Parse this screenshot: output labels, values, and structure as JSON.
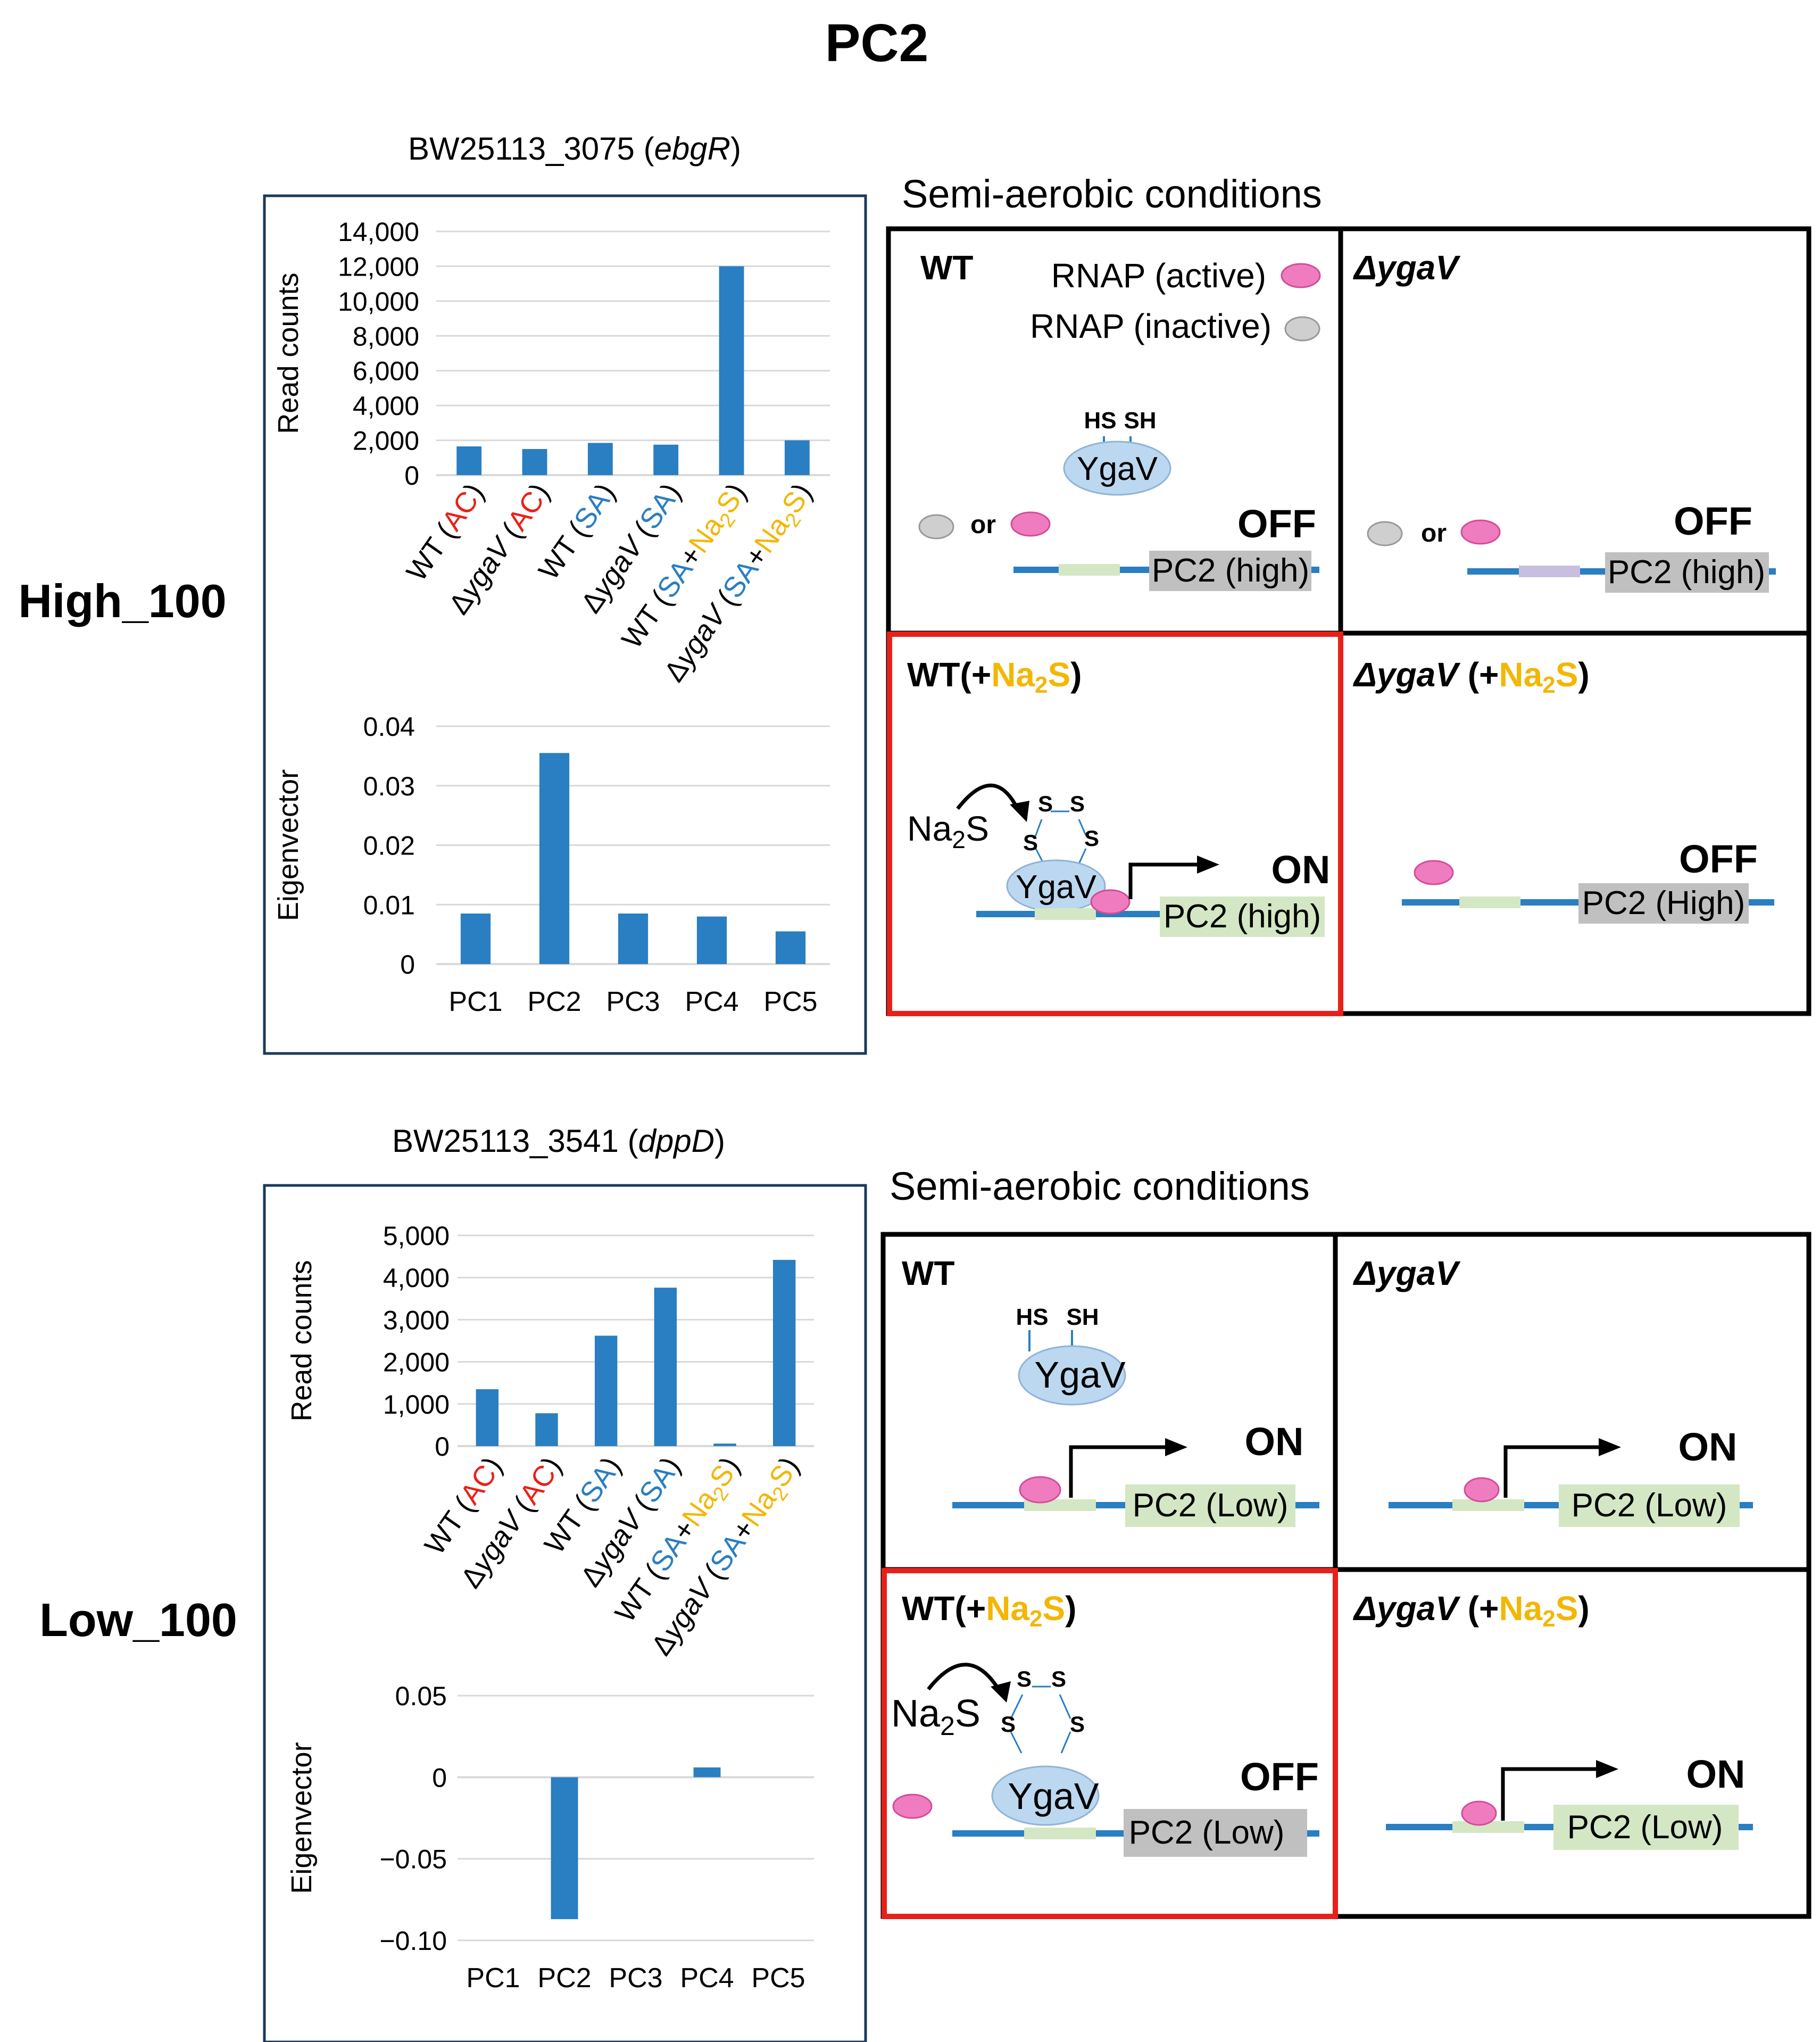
{
  "figure_title": "PC2",
  "colors": {
    "bar": "#2a7ec2",
    "red_label": "#e8201a",
    "blue_label": "#2a7ec2",
    "gold_label": "#f2b705",
    "panel_border": "#1b3a5a",
    "highlight_border": "#e8201a",
    "dna": "#2a7ec2",
    "ygav_fill": "#bcd8f0",
    "rnap_active": "#f07cc0",
    "rnap_inactive": "#c8c8c8",
    "gene_on": "#d4e7c4",
    "gene_off": "#c0c0c0",
    "promoter_alt": "#c8bfe0"
  },
  "rows": [
    {
      "row_label": "High_100",
      "gene_title": {
        "prefix": "BW25113_3075 (",
        "gene": "ebgR",
        "suffix": ")"
      },
      "chart_data": [
        {
          "type": "bar",
          "ylabel": "Read counts",
          "ylim": [
            0,
            14000
          ],
          "yticks": [
            "0",
            "2,000",
            "4,000",
            "6,000",
            "8,000",
            "10,000",
            "12,000",
            "14,000"
          ],
          "categories": [
            "WT (AC)",
            "ΔygaV (AC)",
            "WT (SA)",
            "ΔygaV (SA)",
            "WT (SA+Na2S)",
            "ΔygaV (SA+Na2S)"
          ],
          "values": [
            1650,
            1500,
            1850,
            1750,
            12000,
            2000
          ]
        },
        {
          "type": "bar",
          "ylabel": "Eigenvector",
          "ylim": [
            0,
            0.04
          ],
          "yticks": [
            "0",
            "0.01",
            "0.02",
            "0.03",
            "0.04"
          ],
          "categories": [
            "PC1",
            "PC2",
            "PC3",
            "PC4",
            "PC5"
          ],
          "values": [
            0.0085,
            0.0355,
            0.0085,
            0.008,
            0.0055
          ]
        }
      ],
      "diagram": {
        "heading": "Semi-aerobic conditions",
        "legend": {
          "active": "RNAP (active)",
          "inactive": "RNAP (inactive)"
        },
        "quadrants": [
          {
            "title": "WT",
            "state": "OFF",
            "gene": "PC2 (high)",
            "or": "or"
          },
          {
            "title": "ΔygaV",
            "state": "OFF",
            "gene": "PC2 (high)",
            "or": "or"
          },
          {
            "title": "WT(+Na2S)",
            "state": "ON",
            "gene": "PC2 (high)"
          },
          {
            "title": "ΔygaV (+Na2S)",
            "state": "OFF",
            "gene": "PC2 (High)"
          }
        ]
      }
    },
    {
      "row_label": "Low_100",
      "gene_title": {
        "prefix": "BW25113_3541 (",
        "gene": "dppD",
        "suffix": ")"
      },
      "chart_data": [
        {
          "type": "bar",
          "ylabel": "Read counts",
          "ylim": [
            0,
            5000
          ],
          "yticks": [
            "0",
            "1,000",
            "2,000",
            "3,000",
            "4,000",
            "5,000"
          ],
          "categories": [
            "WT (AC)",
            "ΔygaV (AC)",
            "WT (SA)",
            "ΔygaV (SA)",
            "WT (SA+Na2S)",
            "ΔygaV (SA+Na2S)"
          ],
          "values": [
            1350,
            780,
            2620,
            3760,
            60,
            4420
          ]
        },
        {
          "type": "bar",
          "ylabel": "Eigenvector",
          "ylim": [
            -0.1,
            0.05
          ],
          "yticks": [
            "−0.10",
            "−0.05",
            "0",
            "0.05"
          ],
          "categories": [
            "PC1",
            "PC2",
            "PC3",
            "PC4",
            "PC5"
          ],
          "values": [
            0,
            -0.087,
            0,
            0.006,
            0
          ]
        }
      ],
      "diagram": {
        "heading": "Semi-aerobic conditions",
        "quadrants": [
          {
            "title": "WT",
            "state": "ON",
            "gene": "PC2 (Low)"
          },
          {
            "title": "ΔygaV",
            "state": "ON",
            "gene": "PC2 (Low)"
          },
          {
            "title": "WT(+Na2S)",
            "state": "OFF",
            "gene": "PC2 (Low)"
          },
          {
            "title": "ΔygaV (+Na2S)",
            "state": "ON",
            "gene": "PC2 (Low)"
          }
        ]
      }
    }
  ],
  "molecule": {
    "name": "YgaV",
    "thiol_left": "HS",
    "thiol_right": "SH",
    "sulfur": "S",
    "reagent": "Na2S"
  }
}
